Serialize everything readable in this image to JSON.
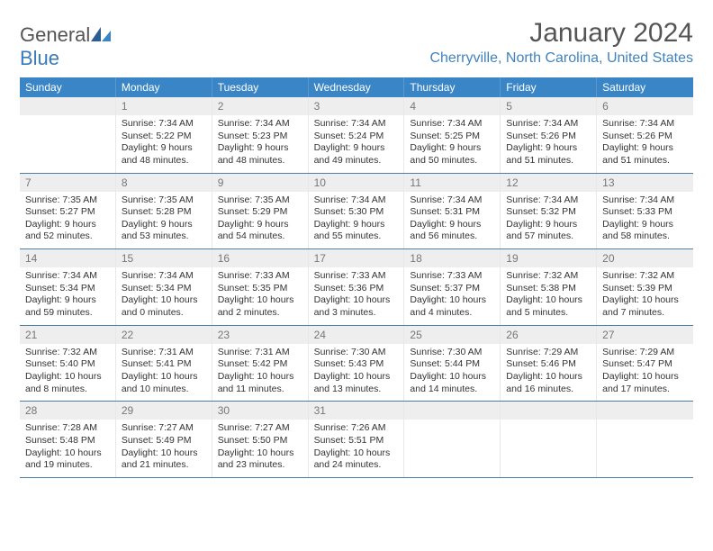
{
  "brand": {
    "general": "General",
    "blue": "Blue"
  },
  "title": "January 2024",
  "location": "Cherryville, North Carolina, United States",
  "dow": [
    "Sunday",
    "Monday",
    "Tuesday",
    "Wednesday",
    "Thursday",
    "Friday",
    "Saturday"
  ],
  "colors": {
    "header_bar": "#3a85c6",
    "accent": "#4183be",
    "divider": "#4a7fa8",
    "daynum_bg": "#eeeeee"
  },
  "weeks": [
    [
      {
        "num": "",
        "sunrise": "",
        "sunset": "",
        "daylight": ""
      },
      {
        "num": "1",
        "sunrise": "Sunrise: 7:34 AM",
        "sunset": "Sunset: 5:22 PM",
        "daylight": "Daylight: 9 hours and 48 minutes."
      },
      {
        "num": "2",
        "sunrise": "Sunrise: 7:34 AM",
        "sunset": "Sunset: 5:23 PM",
        "daylight": "Daylight: 9 hours and 48 minutes."
      },
      {
        "num": "3",
        "sunrise": "Sunrise: 7:34 AM",
        "sunset": "Sunset: 5:24 PM",
        "daylight": "Daylight: 9 hours and 49 minutes."
      },
      {
        "num": "4",
        "sunrise": "Sunrise: 7:34 AM",
        "sunset": "Sunset: 5:25 PM",
        "daylight": "Daylight: 9 hours and 50 minutes."
      },
      {
        "num": "5",
        "sunrise": "Sunrise: 7:34 AM",
        "sunset": "Sunset: 5:26 PM",
        "daylight": "Daylight: 9 hours and 51 minutes."
      },
      {
        "num": "6",
        "sunrise": "Sunrise: 7:34 AM",
        "sunset": "Sunset: 5:26 PM",
        "daylight": "Daylight: 9 hours and 51 minutes."
      }
    ],
    [
      {
        "num": "7",
        "sunrise": "Sunrise: 7:35 AM",
        "sunset": "Sunset: 5:27 PM",
        "daylight": "Daylight: 9 hours and 52 minutes."
      },
      {
        "num": "8",
        "sunrise": "Sunrise: 7:35 AM",
        "sunset": "Sunset: 5:28 PM",
        "daylight": "Daylight: 9 hours and 53 minutes."
      },
      {
        "num": "9",
        "sunrise": "Sunrise: 7:35 AM",
        "sunset": "Sunset: 5:29 PM",
        "daylight": "Daylight: 9 hours and 54 minutes."
      },
      {
        "num": "10",
        "sunrise": "Sunrise: 7:34 AM",
        "sunset": "Sunset: 5:30 PM",
        "daylight": "Daylight: 9 hours and 55 minutes."
      },
      {
        "num": "11",
        "sunrise": "Sunrise: 7:34 AM",
        "sunset": "Sunset: 5:31 PM",
        "daylight": "Daylight: 9 hours and 56 minutes."
      },
      {
        "num": "12",
        "sunrise": "Sunrise: 7:34 AM",
        "sunset": "Sunset: 5:32 PM",
        "daylight": "Daylight: 9 hours and 57 minutes."
      },
      {
        "num": "13",
        "sunrise": "Sunrise: 7:34 AM",
        "sunset": "Sunset: 5:33 PM",
        "daylight": "Daylight: 9 hours and 58 minutes."
      }
    ],
    [
      {
        "num": "14",
        "sunrise": "Sunrise: 7:34 AM",
        "sunset": "Sunset: 5:34 PM",
        "daylight": "Daylight: 9 hours and 59 minutes."
      },
      {
        "num": "15",
        "sunrise": "Sunrise: 7:34 AM",
        "sunset": "Sunset: 5:34 PM",
        "daylight": "Daylight: 10 hours and 0 minutes."
      },
      {
        "num": "16",
        "sunrise": "Sunrise: 7:33 AM",
        "sunset": "Sunset: 5:35 PM",
        "daylight": "Daylight: 10 hours and 2 minutes."
      },
      {
        "num": "17",
        "sunrise": "Sunrise: 7:33 AM",
        "sunset": "Sunset: 5:36 PM",
        "daylight": "Daylight: 10 hours and 3 minutes."
      },
      {
        "num": "18",
        "sunrise": "Sunrise: 7:33 AM",
        "sunset": "Sunset: 5:37 PM",
        "daylight": "Daylight: 10 hours and 4 minutes."
      },
      {
        "num": "19",
        "sunrise": "Sunrise: 7:32 AM",
        "sunset": "Sunset: 5:38 PM",
        "daylight": "Daylight: 10 hours and 5 minutes."
      },
      {
        "num": "20",
        "sunrise": "Sunrise: 7:32 AM",
        "sunset": "Sunset: 5:39 PM",
        "daylight": "Daylight: 10 hours and 7 minutes."
      }
    ],
    [
      {
        "num": "21",
        "sunrise": "Sunrise: 7:32 AM",
        "sunset": "Sunset: 5:40 PM",
        "daylight": "Daylight: 10 hours and 8 minutes."
      },
      {
        "num": "22",
        "sunrise": "Sunrise: 7:31 AM",
        "sunset": "Sunset: 5:41 PM",
        "daylight": "Daylight: 10 hours and 10 minutes."
      },
      {
        "num": "23",
        "sunrise": "Sunrise: 7:31 AM",
        "sunset": "Sunset: 5:42 PM",
        "daylight": "Daylight: 10 hours and 11 minutes."
      },
      {
        "num": "24",
        "sunrise": "Sunrise: 7:30 AM",
        "sunset": "Sunset: 5:43 PM",
        "daylight": "Daylight: 10 hours and 13 minutes."
      },
      {
        "num": "25",
        "sunrise": "Sunrise: 7:30 AM",
        "sunset": "Sunset: 5:44 PM",
        "daylight": "Daylight: 10 hours and 14 minutes."
      },
      {
        "num": "26",
        "sunrise": "Sunrise: 7:29 AM",
        "sunset": "Sunset: 5:46 PM",
        "daylight": "Daylight: 10 hours and 16 minutes."
      },
      {
        "num": "27",
        "sunrise": "Sunrise: 7:29 AM",
        "sunset": "Sunset: 5:47 PM",
        "daylight": "Daylight: 10 hours and 17 minutes."
      }
    ],
    [
      {
        "num": "28",
        "sunrise": "Sunrise: 7:28 AM",
        "sunset": "Sunset: 5:48 PM",
        "daylight": "Daylight: 10 hours and 19 minutes."
      },
      {
        "num": "29",
        "sunrise": "Sunrise: 7:27 AM",
        "sunset": "Sunset: 5:49 PM",
        "daylight": "Daylight: 10 hours and 21 minutes."
      },
      {
        "num": "30",
        "sunrise": "Sunrise: 7:27 AM",
        "sunset": "Sunset: 5:50 PM",
        "daylight": "Daylight: 10 hours and 23 minutes."
      },
      {
        "num": "31",
        "sunrise": "Sunrise: 7:26 AM",
        "sunset": "Sunset: 5:51 PM",
        "daylight": "Daylight: 10 hours and 24 minutes."
      },
      {
        "num": "",
        "sunrise": "",
        "sunset": "",
        "daylight": ""
      },
      {
        "num": "",
        "sunrise": "",
        "sunset": "",
        "daylight": ""
      },
      {
        "num": "",
        "sunrise": "",
        "sunset": "",
        "daylight": ""
      }
    ]
  ]
}
